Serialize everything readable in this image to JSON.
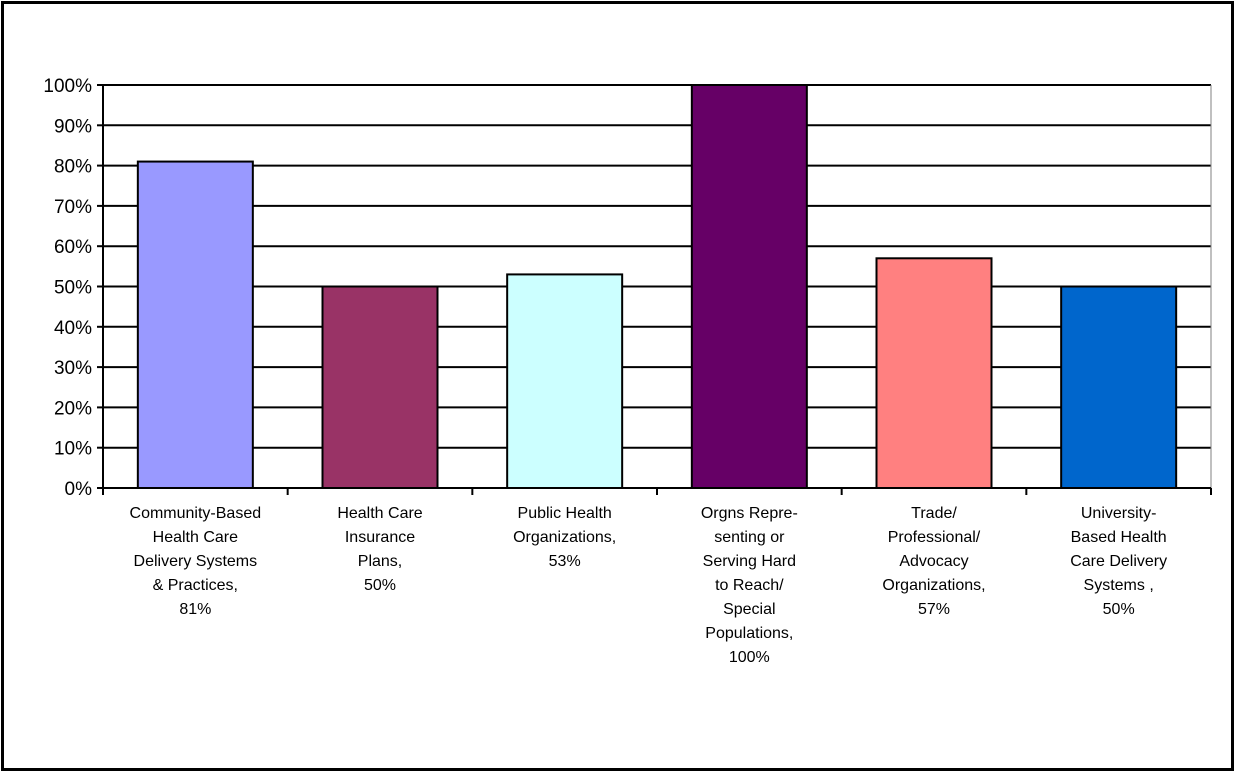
{
  "chart_data": {
    "type": "bar",
    "categories": [
      "Community-Based Health Care Delivery Systems & Practices",
      "Health Care Insurance Plans",
      "Public Health Organizations",
      "Orgns Representing or Serving Hard to Reach/ Special Populations",
      "Trade/ Professional/ Advocacy Organizations",
      "University-Based Health Care Delivery Systems"
    ],
    "category_labels": [
      "Community-Based\nHealth Care\nDelivery Systems\n& Practices,\n81%",
      "Health Care\nInsurance\nPlans,\n50%",
      "Public Health\nOrganizations,\n53%",
      "Orgns Repre-\nsenting or\nServing Hard\nto Reach/\nSpecial\nPopulations,\n100%",
      "Trade/\nProfessional/\nAdvocacy\nOrganizations,\n57%",
      "University-\nBased Health\nCare Delivery\nSystems ,\n50%"
    ],
    "values": [
      81,
      50,
      53,
      100,
      57,
      50
    ],
    "colors": [
      "#9999ff",
      "#993366",
      "#ccffff",
      "#660066",
      "#ff8080",
      "#0066cc"
    ],
    "ylim": [
      0,
      100
    ],
    "yticks": [
      "0%",
      "10%",
      "20%",
      "30%",
      "40%",
      "50%",
      "60%",
      "70%",
      "80%",
      "90%",
      "100%"
    ],
    "grid": true,
    "legend": "none"
  }
}
